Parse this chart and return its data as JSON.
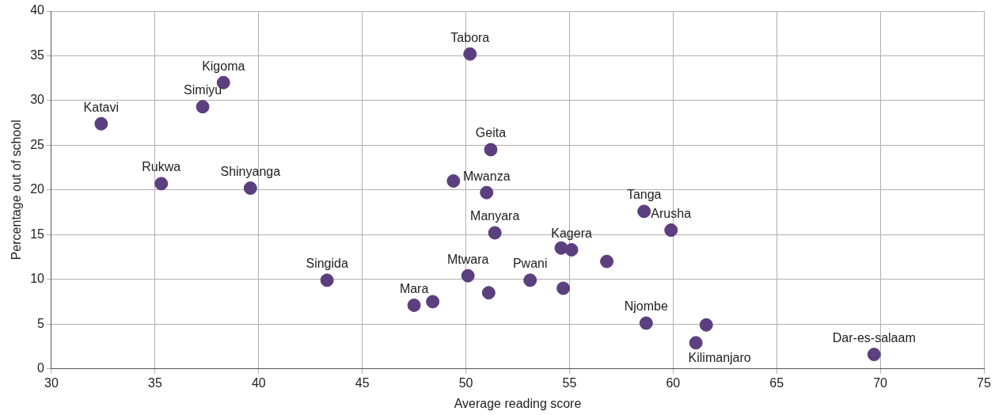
{
  "chart_data": {
    "type": "scatter",
    "xlabel": "Average reading score",
    "ylabel": "Percentage out of school",
    "x": [
      32.4,
      38.3,
      37.3,
      35.3,
      39.6,
      50.2,
      51.2,
      49.4,
      51.0,
      51.4,
      43.3,
      50.1,
      51.1,
      47.5,
      48.4,
      53.1,
      54.6,
      55.1,
      54.7,
      56.8,
      58.6,
      59.9,
      58.7,
      61.6,
      61.1,
      69.7
    ],
    "series": [
      {
        "color": "#5b3f7e",
        "values": [
          27.4,
          32.0,
          29.3,
          20.7,
          20.2,
          35.2,
          24.5,
          21.0,
          19.7,
          15.2,
          9.9,
          10.4,
          8.5,
          7.1,
          7.5,
          9.9,
          13.5,
          13.3,
          9.0,
          12.0,
          17.6,
          15.5,
          5.1,
          4.9,
          2.9,
          1.6
        ]
      }
    ],
    "annotations": [
      {
        "text": "Katavi",
        "x": 32.4,
        "y": 27.4
      },
      {
        "text": "Kigoma",
        "x": 38.3,
        "y": 32.0
      },
      {
        "text": "Simiyu",
        "x": 37.3,
        "y": 29.3
      },
      {
        "text": "Rukwa",
        "x": 35.3,
        "y": 20.7
      },
      {
        "text": "Shinyanga",
        "x": 39.6,
        "y": 20.2
      },
      {
        "text": "Tabora",
        "x": 50.2,
        "y": 35.2
      },
      {
        "text": "Geita",
        "x": 51.2,
        "y": 24.5
      },
      {
        "text": "Mwanza",
        "x": 51.0,
        "y": 19.7
      },
      {
        "text": "Manyara",
        "x": 51.4,
        "y": 15.2
      },
      {
        "text": "Singida",
        "x": 43.3,
        "y": 9.9
      },
      {
        "text": "Mtwara",
        "x": 50.1,
        "y": 10.4
      },
      {
        "text": "Mara",
        "x": 47.5,
        "y": 7.1
      },
      {
        "text": "Pwani",
        "x": 53.1,
        "y": 9.9
      },
      {
        "text": "Kagera",
        "x": 55.1,
        "y": 13.3
      },
      {
        "text": "Tanga",
        "x": 58.6,
        "y": 17.6
      },
      {
        "text": "Arusha",
        "x": 59.9,
        "y": 15.5
      },
      {
        "text": "Njombe",
        "x": 58.7,
        "y": 5.1
      },
      {
        "text": "Kilimanjaro",
        "x": 61.1,
        "y": 2.9
      },
      {
        "text": "Dar-es-salaam",
        "x": 69.7,
        "y": 1.6
      }
    ],
    "xlim": [
      30,
      75
    ],
    "xticks": [
      30,
      35,
      40,
      45,
      50,
      55,
      60,
      65,
      70,
      75
    ],
    "ylim": [
      0,
      40
    ],
    "yticks": [
      0,
      5,
      10,
      15,
      20,
      25,
      30,
      35,
      40
    ],
    "grid": true,
    "legend": false,
    "marker": "circle"
  }
}
